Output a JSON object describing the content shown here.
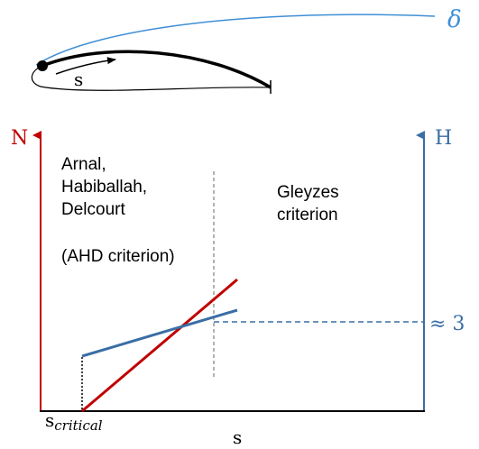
{
  "airfoil": {
    "boundary_layer_label": "δ",
    "arrow_label": "s"
  },
  "axes": {
    "left_label": "N",
    "right_label": "H",
    "x_label": "s",
    "origin_label": "s",
    "origin_subscript": "critical"
  },
  "regions": {
    "left": [
      "Arnal,",
      "Habiballah,",
      "Delcourt",
      "(AHD criterion)"
    ],
    "right": [
      "Gleyzes",
      "criterion"
    ]
  },
  "annotation": "≈ 3"
}
